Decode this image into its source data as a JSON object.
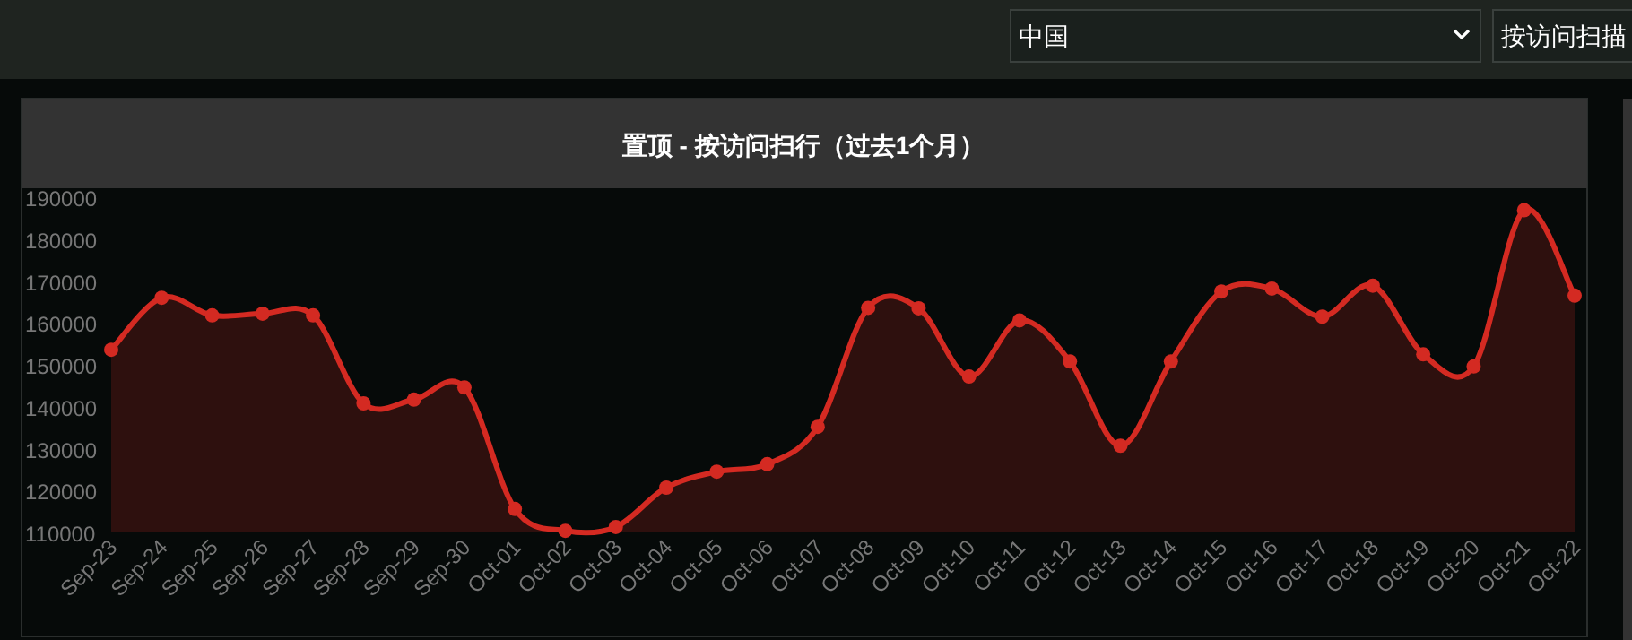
{
  "chart_data": {
    "type": "area",
    "title": "置顶 - 按访问扫行（过去1个月）",
    "categories": [
      "Sep-23",
      "Sep-24",
      "Sep-25",
      "Sep-26",
      "Sep-27",
      "Sep-28",
      "Sep-29",
      "Sep-30",
      "Oct-01",
      "Oct-02",
      "Oct-03",
      "Oct-04",
      "Oct-05",
      "Oct-06",
      "Oct-07",
      "Oct-08",
      "Oct-09",
      "Oct-10",
      "Oct-11",
      "Oct-12",
      "Oct-13",
      "Oct-14",
      "Oct-15",
      "Oct-16",
      "Oct-17",
      "Oct-18",
      "Oct-19",
      "Oct-20",
      "Oct-21",
      "Oct-22"
    ],
    "series": [
      {
        "color": "#d42a22",
        "values": [
          153600,
          166000,
          161800,
          162200,
          161800,
          140800,
          141700,
          144600,
          115600,
          110400,
          111300,
          120700,
          124500,
          126300,
          135200,
          163600,
          163500,
          147200,
          160600,
          150800,
          130700,
          150800,
          167500,
          168200,
          161500,
          168900,
          152500,
          149600,
          186900,
          166500
        ]
      }
    ],
    "ylim": [
      110000,
      190000
    ],
    "yticks": [
      110000,
      120000,
      130000,
      140000,
      150000,
      160000,
      170000,
      180000,
      190000
    ],
    "marker": "circle",
    "line_style": "solid",
    "annotations": [
      "中国",
      "按访问扫描"
    ]
  }
}
